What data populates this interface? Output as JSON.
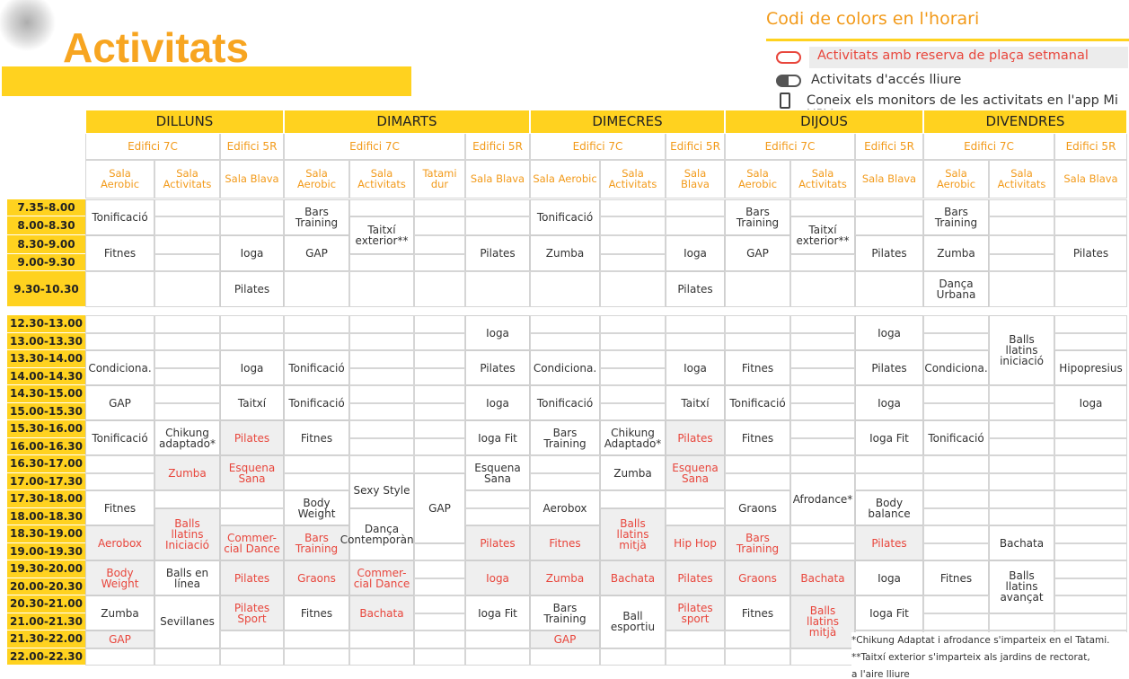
{
  "header": {
    "title": "Activitats"
  },
  "legend": {
    "title": "Codi de colors en l'horari",
    "items": [
      "Activitats amb reserva de plaça setmanal",
      "Activitats d'accés  lliure",
      "Coneix els monitors de les activitats en l'app Mi UPV"
    ]
  },
  "days": [
    {
      "name": "DILLUNS",
      "buildings": [
        {
          "name": "Edifici 7C",
          "rooms": [
            "Sala Aerobic",
            "Sala Activitats"
          ]
        },
        {
          "name": "Edifici 5R",
          "rooms": [
            "Sala Blava"
          ]
        }
      ]
    },
    {
      "name": "DIMARTS",
      "buildings": [
        {
          "name": "Edifici 7C",
          "rooms": [
            "Sala Aerobic",
            "Sala Activitats",
            "Tatami dur"
          ]
        },
        {
          "name": "Edifici 5R",
          "rooms": [
            "Sala Blava"
          ]
        }
      ]
    },
    {
      "name": "DIMECRES",
      "buildings": [
        {
          "name": "Edifici 7C",
          "rooms": [
            "Sala Aerobic",
            "Sala Activitats"
          ]
        },
        {
          "name": "Edifici 5R",
          "rooms": [
            "Sala Blava"
          ]
        }
      ]
    },
    {
      "name": "DIJOUS",
      "buildings": [
        {
          "name": "Edifici 7C",
          "rooms": [
            "Sala Aerobic",
            "Sala Activitats"
          ]
        },
        {
          "name": "Edifici 5R",
          "rooms": [
            "Sala Blava"
          ]
        }
      ]
    },
    {
      "name": "DIVENDRES",
      "buildings": [
        {
          "name": "Edifici 7C",
          "rooms": [
            "Sala Aerobic",
            "Sala Activitats"
          ]
        },
        {
          "name": "Edifici 5R",
          "rooms": [
            "Sala Blava"
          ]
        }
      ]
    }
  ],
  "times": {
    "morning": [
      "7.35-8.00",
      "8.00-8.30",
      "8.30-9.00",
      "9.00-9.30",
      "9.30-10.30"
    ],
    "afternoon": [
      "12.30-13.00",
      "13.00-13.30",
      "13.30-14.00",
      "14.00-14.30",
      "14.30-15.00",
      "15.00-15.30",
      "15.30-16.00",
      "16.00-16.30",
      "16.30-17.00",
      "17.00-17.30",
      "17.30-18.00",
      "18.00-18.30",
      "18.30-19.00",
      "19.00-19.30",
      "19.30-20.00",
      "20.00-20.30",
      "20.30-21.00",
      "21.00-21.30",
      "21.30-22.00",
      "22.00-22.30"
    ]
  },
  "schedule": {
    "morning": [
      [
        {
          "text": "Tonificació",
          "slot": 0,
          "span": 2
        },
        {
          "text": "Fitnes",
          "slot": 2,
          "span": 2
        }
      ],
      [],
      [
        {
          "text": "Ioga",
          "slot": 2,
          "span": 2
        },
        {
          "text": "Pilates",
          "slot": 4,
          "span": 1
        }
      ],
      [
        {
          "text": "Bars Training",
          "slot": 0,
          "span": 2
        },
        {
          "text": "GAP",
          "slot": 2,
          "span": 2
        }
      ],
      [
        {
          "text": "Taitxí exterior**",
          "slot": 1,
          "span": 2
        }
      ],
      [],
      [
        {
          "text": "Pilates",
          "slot": 2,
          "span": 2
        }
      ],
      [
        {
          "text": "Tonificació",
          "slot": 0,
          "span": 2
        },
        {
          "text": "Zumba",
          "slot": 2,
          "span": 2
        }
      ],
      [],
      [
        {
          "text": "Ioga",
          "slot": 2,
          "span": 2
        },
        {
          "text": "Pilates",
          "slot": 4,
          "span": 1
        }
      ],
      [
        {
          "text": "Bars Training",
          "slot": 0,
          "span": 2
        },
        {
          "text": "GAP",
          "slot": 2,
          "span": 2
        }
      ],
      [
        {
          "text": "Taitxí exterior**",
          "slot": 1,
          "span": 2
        }
      ],
      [
        {
          "text": "Pilates",
          "slot": 2,
          "span": 2
        }
      ],
      [
        {
          "text": "Bars Training",
          "slot": 0,
          "span": 2
        },
        {
          "text": "Zumba",
          "slot": 2,
          "span": 2
        },
        {
          "text": "Dança Urbana",
          "slot": 4,
          "span": 1
        }
      ],
      [],
      [
        {
          "text": "Pilates",
          "slot": 2,
          "span": 2
        }
      ]
    ],
    "afternoon": [
      [
        {
          "text": "Condiciona.",
          "slot": 2,
          "span": 2
        },
        {
          "text": "GAP",
          "slot": 4,
          "span": 2
        },
        {
          "text": "Tonificació",
          "slot": 6,
          "span": 2
        },
        {
          "text": "Fitnes",
          "slot": 10,
          "span": 2
        },
        {
          "text": "Aerobox",
          "slot": 12,
          "span": 2,
          "reserve": true
        },
        {
          "text": "Body Weight",
          "slot": 14,
          "span": 2,
          "reserve": true
        },
        {
          "text": "Zumba",
          "slot": 16,
          "span": 2
        },
        {
          "text": "GAP",
          "slot": 18,
          "span": 1,
          "reserve": true
        }
      ],
      [
        {
          "text": "Chikung adaptado*",
          "slot": 6,
          "span": 2
        },
        {
          "text": "Zumba",
          "slot": 8,
          "span": 2,
          "reserve": true
        },
        {
          "text": "Balls llatins Iniciació",
          "slot": 11,
          "span": 3,
          "reserve": true
        },
        {
          "text": "Balls en línea",
          "slot": 14,
          "span": 2
        },
        {
          "text": "Sevillanes",
          "slot": 16,
          "span": 3
        }
      ],
      [
        {
          "text": "Ioga",
          "slot": 2,
          "span": 2
        },
        {
          "text": "Taitxí",
          "slot": 4,
          "span": 2
        },
        {
          "text": "Pilates",
          "slot": 6,
          "span": 2,
          "reserve": true
        },
        {
          "text": "Esquena Sana",
          "slot": 8,
          "span": 2,
          "reserve": true
        },
        {
          "text": "Commer-cial Dance",
          "slot": 12,
          "span": 2,
          "reserve": true
        },
        {
          "text": "Pilates",
          "slot": 14,
          "span": 2,
          "reserve": true
        },
        {
          "text": "Pilates Sport",
          "slot": 16,
          "span": 2,
          "reserve": true
        }
      ],
      [
        {
          "text": "Tonificació",
          "slot": 2,
          "span": 2
        },
        {
          "text": "Tonificació",
          "slot": 4,
          "span": 2
        },
        {
          "text": "Fitnes",
          "slot": 6,
          "span": 2
        },
        {
          "text": "Body Weight",
          "slot": 10,
          "span": 2
        },
        {
          "text": "Bars Training",
          "slot": 12,
          "span": 2,
          "reserve": true
        },
        {
          "text": "Graons",
          "slot": 14,
          "span": 2,
          "reserve": true
        },
        {
          "text": "Fitnes",
          "slot": 16,
          "span": 2
        }
      ],
      [
        {
          "text": "Sexy Style",
          "slot": 9,
          "span": 2
        },
        {
          "text": "Dança Contemporània",
          "slot": 11,
          "span": 3
        },
        {
          "text": "Commer-cial Dance",
          "slot": 14,
          "span": 2,
          "reserve": true
        },
        {
          "text": "Bachata",
          "slot": 16,
          "span": 2,
          "reserve": true
        }
      ],
      [
        {
          "text": "GAP",
          "slot": 9,
          "span": 4
        }
      ],
      [
        {
          "text": "Ioga",
          "slot": 0,
          "span": 2
        },
        {
          "text": "Pilates",
          "slot": 2,
          "span": 2
        },
        {
          "text": "Ioga",
          "slot": 4,
          "span": 2
        },
        {
          "text": "Ioga Fit",
          "slot": 6,
          "span": 2
        },
        {
          "text": "Esquena Sana",
          "slot": 8,
          "span": 2
        },
        {
          "text": "Pilates",
          "slot": 12,
          "span": 2,
          "reserve": true
        },
        {
          "text": "Ioga",
          "slot": 14,
          "span": 2,
          "reserve": true
        },
        {
          "text": "Ioga Fit",
          "slot": 16,
          "span": 2
        }
      ],
      [
        {
          "text": "Condiciona.",
          "slot": 2,
          "span": 2
        },
        {
          "text": "Tonificació",
          "slot": 4,
          "span": 2
        },
        {
          "text": "Bars Training",
          "slot": 6,
          "span": 2
        },
        {
          "text": "Aerobox",
          "slot": 10,
          "span": 2
        },
        {
          "text": "Fitnes",
          "slot": 12,
          "span": 2,
          "reserve": true
        },
        {
          "text": "Zumba",
          "slot": 14,
          "span": 2,
          "reserve": true
        },
        {
          "text": "Bars Training",
          "slot": 16,
          "span": 2
        },
        {
          "text": "GAP",
          "slot": 18,
          "span": 1,
          "reserve": true
        }
      ],
      [
        {
          "text": "Chikung Adaptado*",
          "slot": 6,
          "span": 2
        },
        {
          "text": "Zumba",
          "slot": 8,
          "span": 2
        },
        {
          "text": "Balls llatins mitjà",
          "slot": 11,
          "span": 3,
          "reserve": true
        },
        {
          "text": "Bachata",
          "slot": 14,
          "span": 2,
          "reserve": true
        },
        {
          "text": "Ball esportiu",
          "slot": 16,
          "span": 3
        }
      ],
      [
        {
          "text": "Ioga",
          "slot": 2,
          "span": 2
        },
        {
          "text": "Taitxí",
          "slot": 4,
          "span": 2
        },
        {
          "text": "Pilates",
          "slot": 6,
          "span": 2,
          "reserve": true
        },
        {
          "text": "Esquena Sana",
          "slot": 8,
          "span": 2,
          "reserve": true
        },
        {
          "text": "Hip Hop",
          "slot": 12,
          "span": 2,
          "reserve": true
        },
        {
          "text": "Pilates",
          "slot": 14,
          "span": 2,
          "reserve": true
        },
        {
          "text": "Pilates sport",
          "slot": 16,
          "span": 2,
          "reserve": true
        }
      ],
      [
        {
          "text": "Fitnes",
          "slot": 2,
          "span": 2
        },
        {
          "text": "Tonificació",
          "slot": 4,
          "span": 2
        },
        {
          "text": "Fitnes",
          "slot": 6,
          "span": 2
        },
        {
          "text": "Graons",
          "slot": 10,
          "span": 2
        },
        {
          "text": "Bars Training",
          "slot": 12,
          "span": 2,
          "reserve": true
        },
        {
          "text": "Graons",
          "slot": 14,
          "span": 2,
          "reserve": true
        },
        {
          "text": "Fitnes",
          "slot": 16,
          "span": 2
        }
      ],
      [
        {
          "text": "Afrodance*",
          "slot": 9,
          "span": 3
        },
        {
          "text": "Bachata",
          "slot": 14,
          "span": 2,
          "reserve": true
        },
        {
          "text": "Balls llatins mitjà",
          "slot": 16,
          "span": 3,
          "reserve": true
        }
      ],
      [
        {
          "text": "Ioga",
          "slot": 0,
          "span": 2
        },
        {
          "text": "Pilates",
          "slot": 2,
          "span": 2
        },
        {
          "text": "Ioga",
          "slot": 4,
          "span": 2
        },
        {
          "text": "Ioga Fit",
          "slot": 6,
          "span": 2
        },
        {
          "text": "Body balance",
          "slot": 10,
          "span": 2
        },
        {
          "text": "Pilates",
          "slot": 12,
          "span": 2,
          "reserve": true
        },
        {
          "text": "Ioga",
          "slot": 14,
          "span": 2
        },
        {
          "text": "Ioga Fit",
          "slot": 16,
          "span": 2
        }
      ],
      [
        {
          "text": "Condiciona.",
          "slot": 2,
          "span": 2
        },
        {
          "text": "Tonificació",
          "slot": 6,
          "span": 2
        },
        {
          "text": "Fitnes",
          "slot": 14,
          "span": 2
        }
      ],
      [
        {
          "text": "Balls llatins iniciació",
          "slot": 0,
          "span": 4
        },
        {
          "text": "Bachata",
          "slot": 12,
          "span": 2
        },
        {
          "text": "Balls llatins avançat",
          "slot": 14,
          "span": 3
        }
      ],
      [
        {
          "text": "Hipopresius",
          "slot": 2,
          "span": 2
        },
        {
          "text": "Ioga",
          "slot": 4,
          "span": 2
        }
      ]
    ]
  },
  "footnotes": [
    "*Chikung Adaptat i afrodance s'imparteix en el Tatami.",
    "**Taitxí exterior s'imparteix als jardins de rectorat,",
    "a l'aire lliure"
  ]
}
